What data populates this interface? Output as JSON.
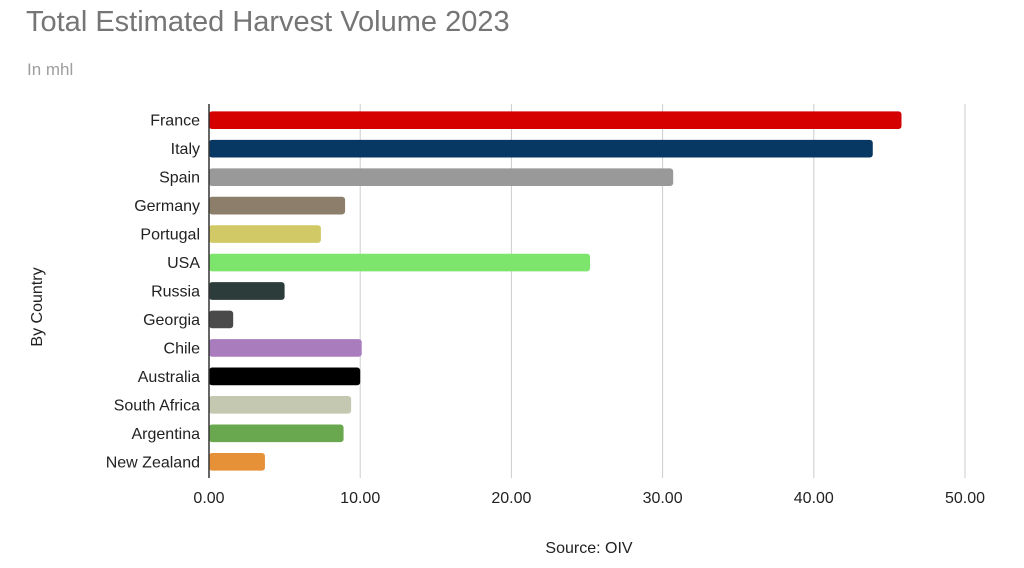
{
  "chart_data": {
    "type": "bar",
    "orientation": "horizontal",
    "title": "Total Estimated Harvest Volume 2023",
    "subtitle": "In mhl",
    "ylabel": "By Country",
    "xlabel": "Source: OIV",
    "categories": [
      "France",
      "Italy",
      "Spain",
      "Germany",
      "Portugal",
      "USA",
      "Russia",
      "Georgia",
      "Chile",
      "Australia",
      "South Africa",
      "Argentina",
      "New Zealand"
    ],
    "values": [
      45.8,
      43.9,
      30.7,
      9.0,
      7.4,
      25.2,
      5.0,
      1.6,
      10.1,
      10.0,
      9.4,
      8.9,
      3.7
    ],
    "colors": [
      "#d50000",
      "#073763",
      "#999999",
      "#8c7e6a",
      "#d1c966",
      "#7de46c",
      "#2b3c3a",
      "#4a4a4a",
      "#a87cbd",
      "#000000",
      "#c5c8b0",
      "#6aa84f",
      "#e69138"
    ],
    "xlim": [
      0,
      50
    ],
    "xticks": [
      "0.00",
      "10.00",
      "20.00",
      "30.00",
      "40.00",
      "50.00"
    ],
    "grid": true,
    "legend": "none"
  }
}
